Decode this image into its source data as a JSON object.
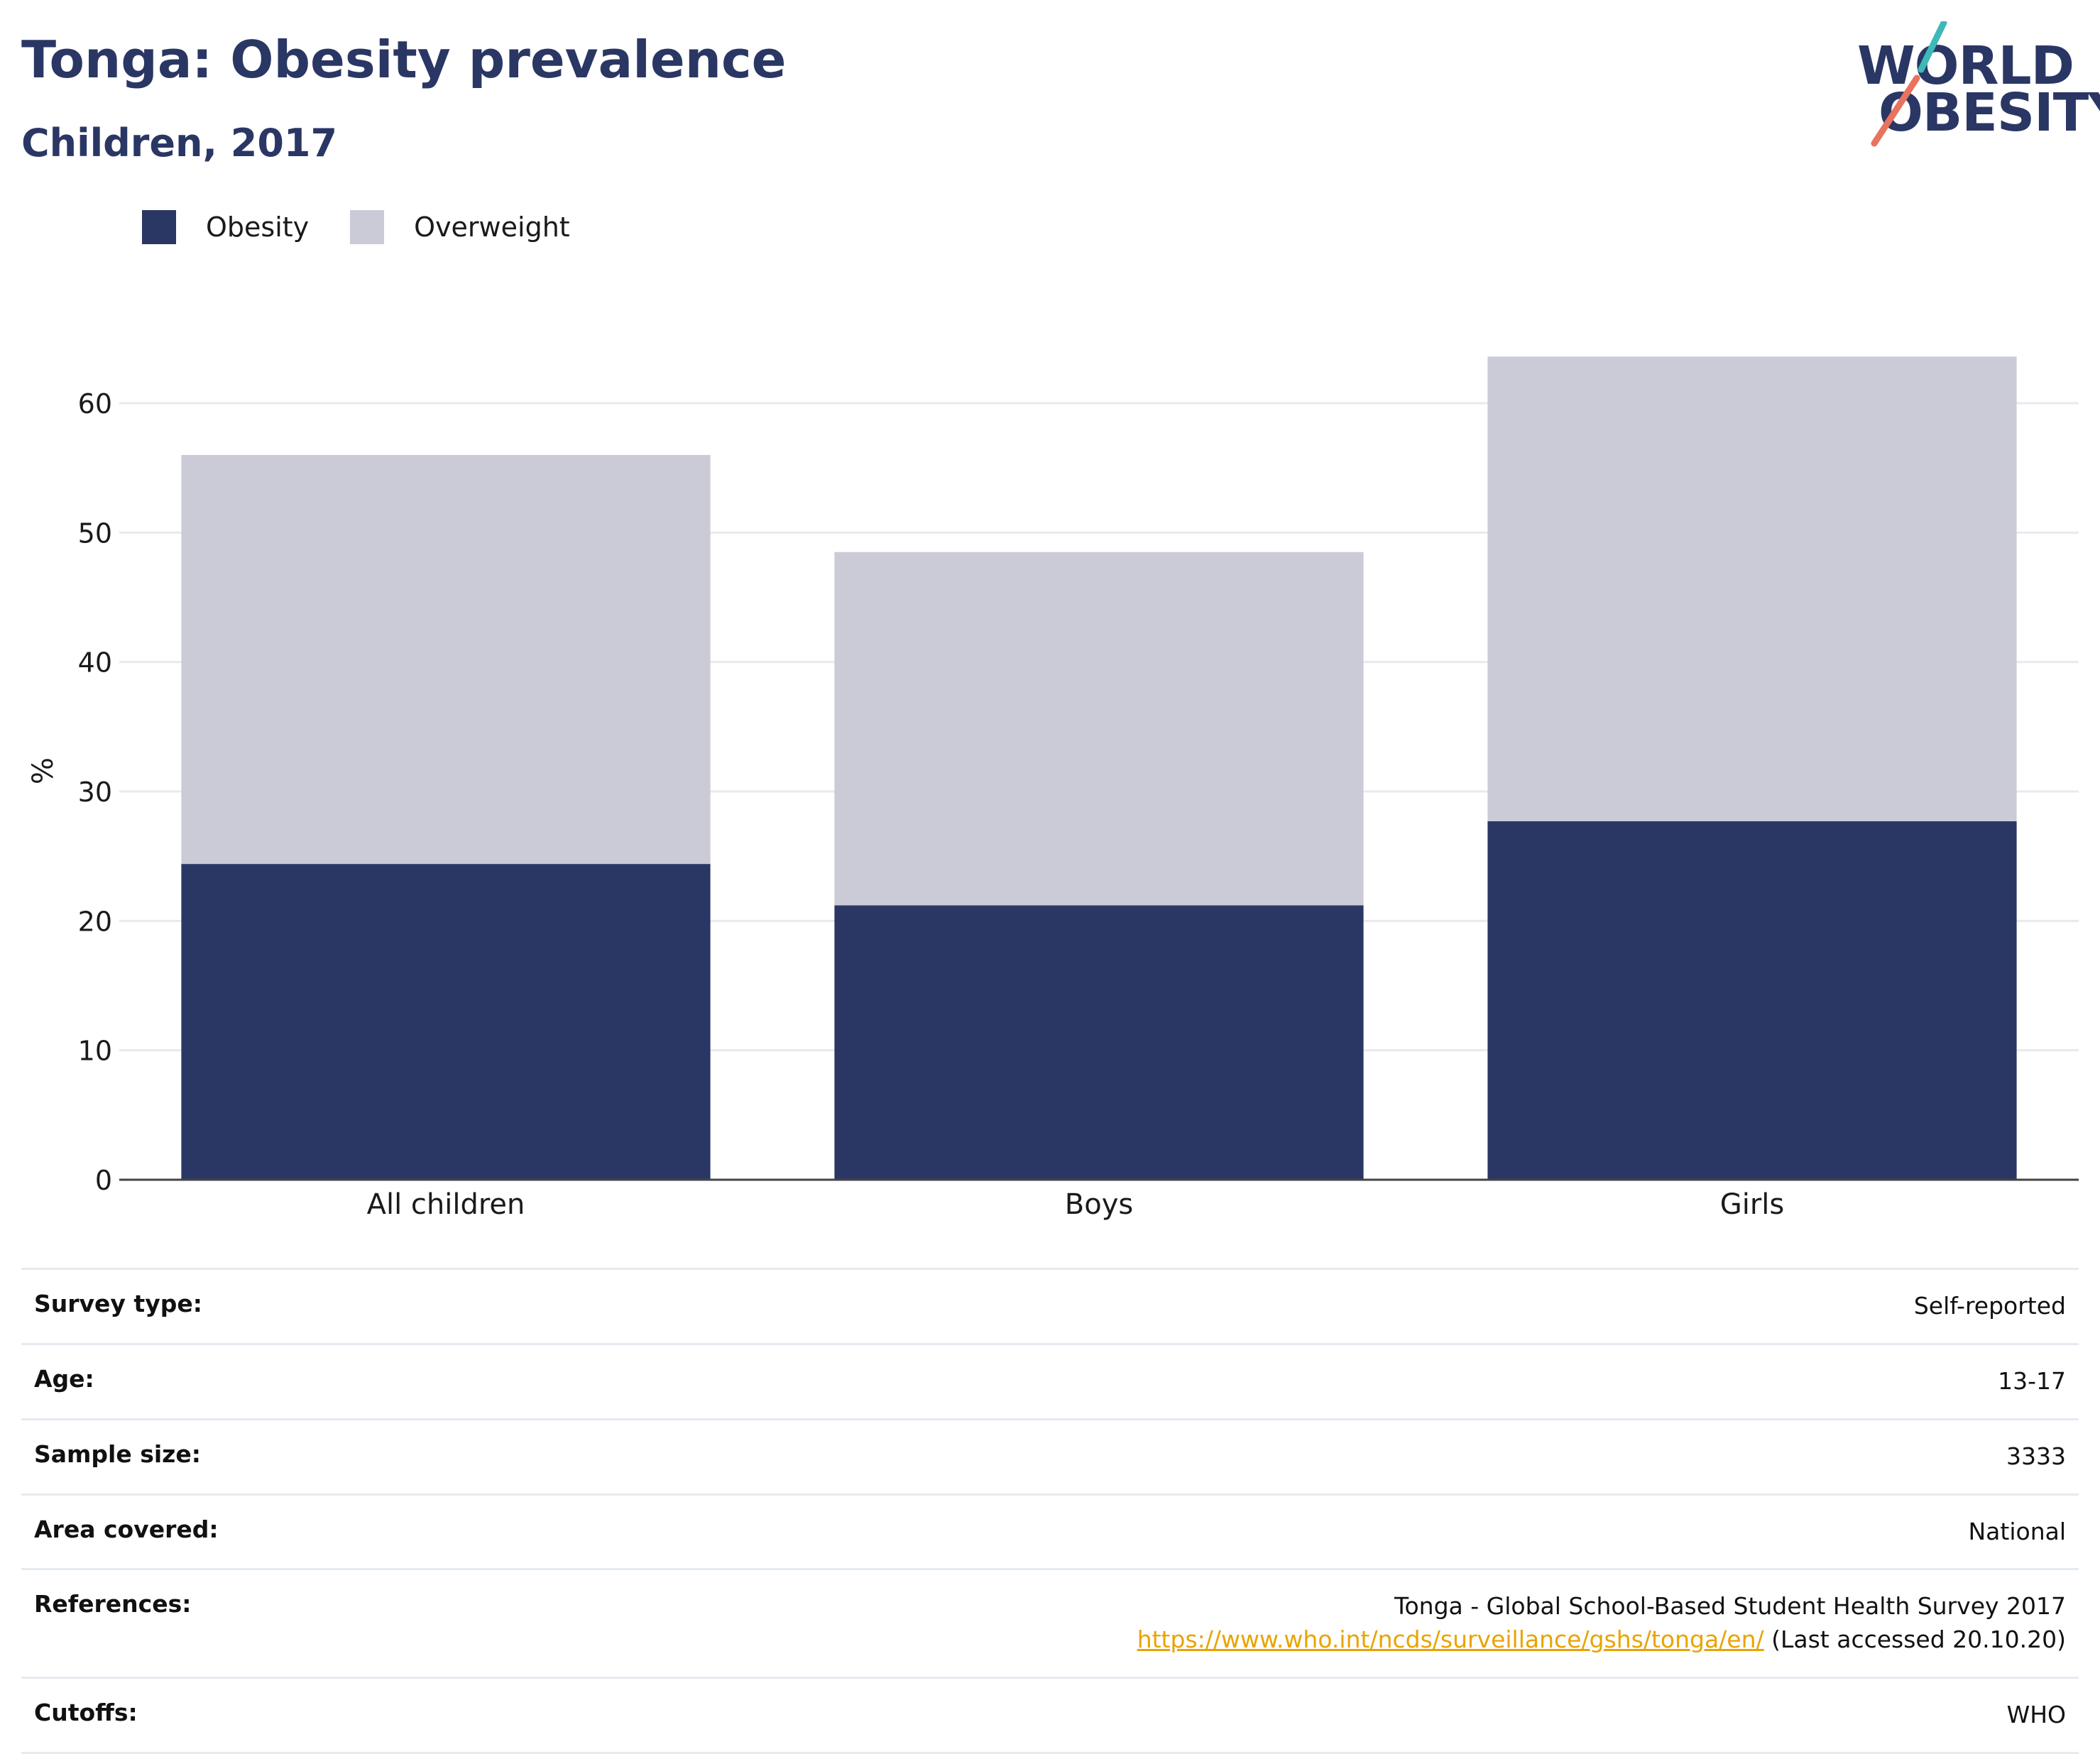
{
  "header": {
    "title": "Tonga: Obesity prevalence",
    "subtitle": "Children, 2017"
  },
  "logo": {
    "line1": "WORLD",
    "line2": "OBESITY",
    "colors": {
      "navy": "#2a3764",
      "teal": "#3fb8b8",
      "coral": "#e8735e"
    }
  },
  "legend": [
    {
      "label": "Obesity",
      "color": "#2a3764"
    },
    {
      "label": "Overweight",
      "color": "#cacbd6"
    }
  ],
  "chart_data": {
    "type": "bar",
    "stacked": true,
    "categories": [
      "All children",
      "Boys",
      "Girls"
    ],
    "series": [
      {
        "name": "Obesity",
        "color": "#2a3764",
        "values": [
          24.4,
          21.2,
          27.7
        ]
      },
      {
        "name": "Overweight",
        "color": "#cacbd6",
        "values": [
          31.6,
          27.3,
          35.9
        ]
      }
    ],
    "ylabel": "%",
    "xlabel": "",
    "ylim": [
      0,
      65
    ],
    "yticks": [
      0,
      10,
      20,
      30,
      40,
      50,
      60
    ],
    "grid": true,
    "legend_position": "top-left"
  },
  "info": {
    "rows": [
      {
        "label": "Survey type:",
        "value": "Self-reported"
      },
      {
        "label": "Age:",
        "value": "13-17"
      },
      {
        "label": "Sample size:",
        "value": "3333"
      },
      {
        "label": "Area covered:",
        "value": "National"
      }
    ],
    "references": {
      "label": "References:",
      "text_before": "Tonga - Global School-Based Student Health Survey 2017 ",
      "link": "https://www.who.int/ncds/surveillance/gshs/tonga/en/",
      "text_after": " (Last accessed 20.10.20)"
    },
    "cutoffs": {
      "label": "Cutoffs:",
      "value": "WHO"
    },
    "link_color": "#e8a400"
  }
}
